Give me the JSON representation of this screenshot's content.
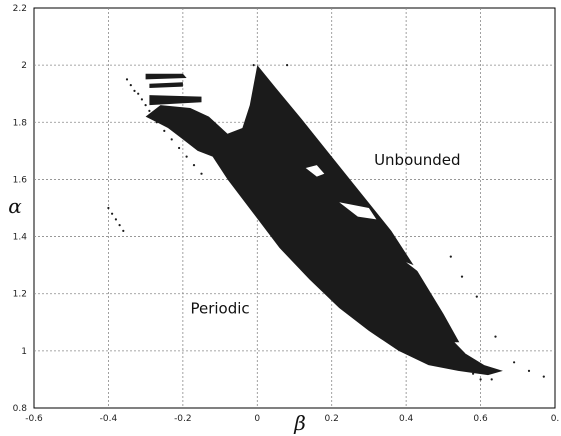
{
  "chart_data": {
    "type": "scatter",
    "title": "",
    "xlabel": "β",
    "ylabel": "α",
    "xlim": [
      -0.6,
      0.8
    ],
    "ylim": [
      0.8,
      2.2
    ],
    "xticks": [
      "-0.6",
      "-0.4",
      "-0.2",
      "0",
      "0.2",
      "0.4",
      "0.6",
      "0."
    ],
    "yticks": [
      "0.8",
      "1",
      "1.2",
      "1.4",
      "1.6",
      "1.8",
      "2",
      "2.2"
    ],
    "grid": true,
    "legend": "none",
    "annotations": [
      {
        "text": "Unbounded",
        "x": 0.43,
        "y": 1.65
      },
      {
        "text": "Periodic",
        "x": -0.1,
        "y": 1.13
      }
    ],
    "regions": [
      {
        "label": "",
        "color": "#1b1b1b",
        "polygon": [
          [
            0.0,
            2.0
          ],
          [
            0.05,
            1.92
          ],
          [
            0.12,
            1.81
          ],
          [
            0.2,
            1.68
          ],
          [
            0.28,
            1.55
          ],
          [
            0.36,
            1.42
          ],
          [
            0.43,
            1.28
          ],
          [
            0.5,
            1.13
          ],
          [
            0.56,
            0.99
          ],
          [
            0.61,
            0.95
          ],
          [
            0.66,
            0.93
          ],
          [
            0.62,
            0.915
          ],
          [
            0.54,
            0.93
          ],
          [
            0.46,
            0.95
          ],
          [
            0.38,
            1.0
          ],
          [
            0.3,
            1.07
          ],
          [
            0.22,
            1.15
          ],
          [
            0.14,
            1.25
          ],
          [
            0.06,
            1.36
          ],
          [
            -0.01,
            1.48
          ],
          [
            -0.08,
            1.6
          ],
          [
            -0.12,
            1.68
          ],
          [
            -0.16,
            1.7
          ],
          [
            -0.2,
            1.74
          ],
          [
            -0.24,
            1.78
          ],
          [
            -0.27,
            1.8
          ],
          [
            -0.3,
            1.82
          ],
          [
            -0.26,
            1.86
          ],
          [
            -0.18,
            1.85
          ],
          [
            -0.13,
            1.82
          ],
          [
            -0.08,
            1.76
          ],
          [
            -0.04,
            1.78
          ],
          [
            -0.02,
            1.86
          ]
        ]
      },
      {
        "label": "",
        "color": "#1b1b1b",
        "polygon": [
          [
            -0.3,
            1.97
          ],
          [
            -0.2,
            1.97
          ],
          [
            -0.19,
            1.955
          ],
          [
            -0.3,
            1.95
          ]
        ]
      },
      {
        "label": "",
        "color": "#1b1b1b",
        "polygon": [
          [
            -0.29,
            1.935
          ],
          [
            -0.2,
            1.94
          ],
          [
            -0.2,
            1.925
          ],
          [
            -0.29,
            1.92
          ]
        ]
      },
      {
        "label": "",
        "color": "#1b1b1b",
        "polygon": [
          [
            -0.29,
            1.895
          ],
          [
            -0.15,
            1.89
          ],
          [
            -0.15,
            1.87
          ],
          [
            -0.29,
            1.86
          ]
        ]
      },
      {
        "label": "",
        "color": "#ffffff",
        "polygon": [
          [
            0.22,
            1.52
          ],
          [
            0.27,
            1.47
          ],
          [
            0.32,
            1.46
          ],
          [
            0.3,
            1.5
          ]
        ]
      },
      {
        "label": "",
        "color": "#ffffff",
        "polygon": [
          [
            0.13,
            1.64
          ],
          [
            0.16,
            1.61
          ],
          [
            0.18,
            1.62
          ],
          [
            0.16,
            1.65
          ]
        ]
      },
      {
        "label": "",
        "color": "#ffffff",
        "polygon": [
          [
            0.4,
            1.31
          ],
          [
            0.44,
            1.27
          ],
          [
            0.47,
            1.24
          ],
          [
            0.42,
            1.3
          ]
        ]
      },
      {
        "label": "",
        "color": "#ffffff",
        "polygon": [
          [
            0.53,
            1.03
          ],
          [
            0.56,
            0.99
          ],
          [
            0.58,
            0.985
          ],
          [
            0.55,
            1.03
          ]
        ]
      }
    ],
    "scatter_points": [
      {
        "x": -0.4,
        "y": 1.5
      },
      {
        "x": -0.39,
        "y": 1.48
      },
      {
        "x": -0.38,
        "y": 1.46
      },
      {
        "x": -0.37,
        "y": 1.44
      },
      {
        "x": -0.36,
        "y": 1.42
      },
      {
        "x": -0.35,
        "y": 1.95
      },
      {
        "x": -0.34,
        "y": 1.93
      },
      {
        "x": -0.33,
        "y": 1.91
      },
      {
        "x": -0.32,
        "y": 1.9
      },
      {
        "x": -0.31,
        "y": 1.88
      },
      {
        "x": -0.3,
        "y": 1.86
      },
      {
        "x": -0.29,
        "y": 1.84
      },
      {
        "x": -0.28,
        "y": 1.82
      },
      {
        "x": -0.27,
        "y": 1.8
      },
      {
        "x": -0.25,
        "y": 1.77
      },
      {
        "x": -0.23,
        "y": 1.74
      },
      {
        "x": -0.21,
        "y": 1.71
      },
      {
        "x": -0.19,
        "y": 1.68
      },
      {
        "x": -0.17,
        "y": 1.65
      },
      {
        "x": -0.15,
        "y": 1.62
      },
      {
        "x": 0.52,
        "y": 1.33
      },
      {
        "x": 0.55,
        "y": 1.26
      },
      {
        "x": 0.59,
        "y": 1.19
      },
      {
        "x": 0.64,
        "y": 1.05
      },
      {
        "x": 0.69,
        "y": 0.96
      },
      {
        "x": 0.73,
        "y": 0.93
      },
      {
        "x": 0.77,
        "y": 0.91
      },
      {
        "x": 0.6,
        "y": 0.9
      },
      {
        "x": 0.63,
        "y": 0.9
      },
      {
        "x": 0.58,
        "y": 0.92
      },
      {
        "x": -0.01,
        "y": 2.0
      },
      {
        "x": 0.08,
        "y": 2.0
      }
    ]
  }
}
